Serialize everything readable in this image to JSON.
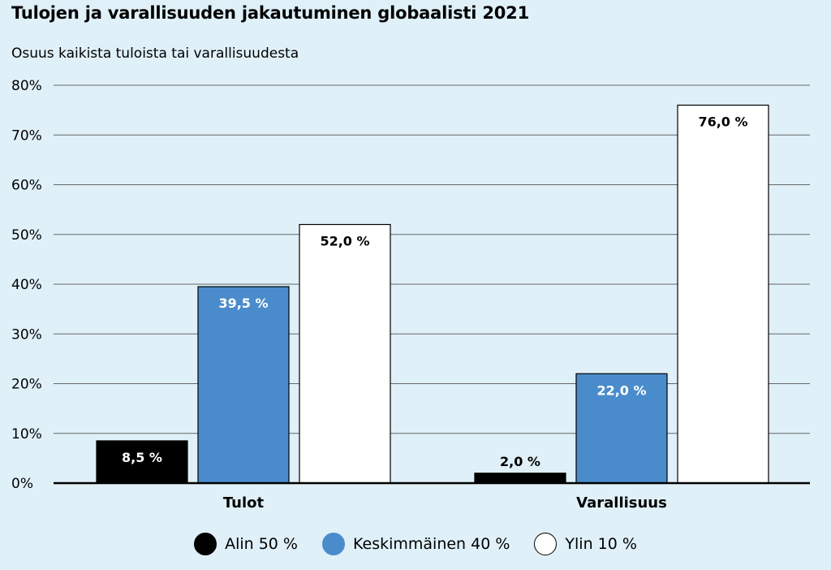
{
  "chart_data": {
    "type": "bar",
    "title": "Tulojen ja varallisuuden jakautuminen globaalisti 2021",
    "ylabel": "Osuus kaikista tuloista tai varallisuudesta",
    "xlabel": "",
    "categories": [
      "Tulot",
      "Varallisuus"
    ],
    "series": [
      {
        "name": "Alin 50 %",
        "values": [
          8.5,
          2.0
        ],
        "labels": [
          "8,5 %",
          "2,0 %"
        ],
        "color": "#000000",
        "label_color": "#ffffff"
      },
      {
        "name": "Keskimmäinen 40 %",
        "values": [
          39.5,
          22.0
        ],
        "labels": [
          "39,5 %",
          "22,0 %"
        ],
        "color": "#4a8ccb",
        "label_color": "#ffffff"
      },
      {
        "name": "Ylin 10 %",
        "values": [
          52.0,
          76.0
        ],
        "labels": [
          "52,0 %",
          "76,0 %"
        ],
        "color": "#ffffff",
        "label_color": "#000000"
      }
    ],
    "ylim": [
      0,
      80
    ],
    "yticks": [
      0,
      10,
      20,
      30,
      40,
      50,
      60,
      70,
      80
    ],
    "ytick_labels": [
      "0%",
      "10%",
      "20%",
      "30%",
      "40%",
      "50%",
      "60%",
      "70%",
      "80%"
    ],
    "grid": true,
    "legend_position": "bottom"
  }
}
